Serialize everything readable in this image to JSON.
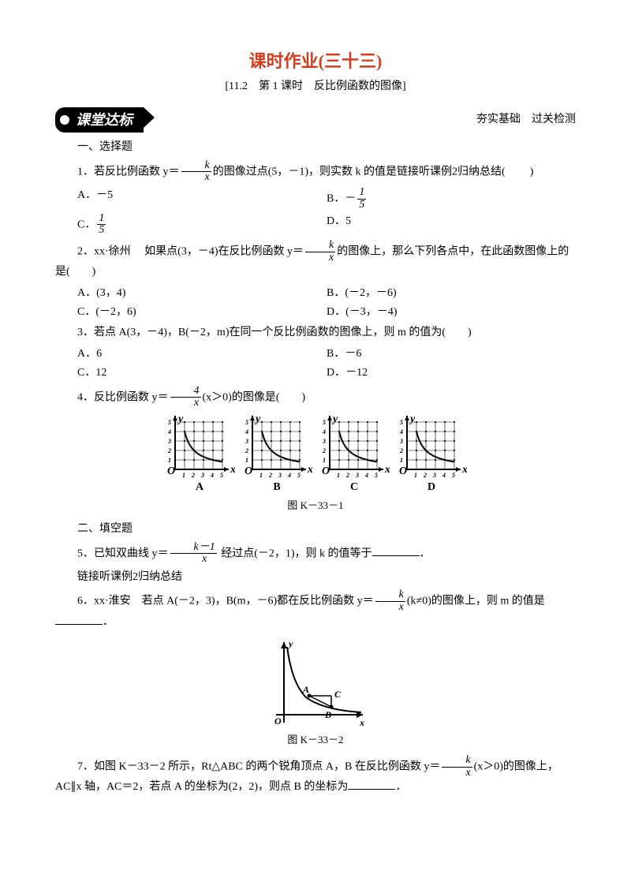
{
  "title": "课时作业(三十三)",
  "subtitle": "[11.2　第 1 课时　反比例函数的图像]",
  "banner": {
    "left": "课堂达标",
    "right": "夯实基础　过关检测"
  },
  "sec1": "一、选择题",
  "q1": {
    "stem_a": "1．若反比例函数 y＝",
    "frac": {
      "n": "k",
      "d": "x"
    },
    "stem_b": "的图像过点(5，－1)，则实数 k 的值是链接听课例2归纳总结",
    "paren": "(　　)",
    "A_pre": "A．－5",
    "B_pre": "B．－",
    "B_frac": {
      "n": "1",
      "d": "5"
    },
    "C_pre": "C．",
    "C_frac": {
      "n": "1",
      "d": "5"
    },
    "D_pre": "D．5"
  },
  "q2": {
    "stem_a": "2．xx·徐州　 如果点(3，－4)在反比例函数 y＝",
    "frac": {
      "n": "k",
      "d": "x"
    },
    "stem_b": "的图像上，那么下列各点中，在此函数图像上的是(　　)",
    "A": "A．(3，4)",
    "B": "B．(－2，－6)",
    "C": "C．(－2，6)",
    "D": "D．(－3，－4)"
  },
  "q3": {
    "stem": "3．若点 A(3，－4)，B(－2，m)在同一个反比例函数的图像上，则 m 的值为(　　)",
    "A": "A．6",
    "B": "B．－6",
    "C": "C．12",
    "D": "D．－12"
  },
  "q4": {
    "stem_a": "4．反比例函数 y＝",
    "frac": {
      "n": "4",
      "d": "x"
    },
    "stem_b": "(x＞0)的图像是(　　)",
    "labels": [
      "A",
      "B",
      "C",
      "D"
    ],
    "caption": "图 K－33－1",
    "chart_style": {
      "grid_n": 5,
      "cell": 12,
      "grid_color": "#222",
      "curve_color": "#000",
      "bg": "#fff",
      "ylabel": "y",
      "xlabel": "x",
      "origin": "O"
    }
  },
  "sec2": "二、填空题",
  "q5": {
    "stem_a": "5．已知双曲线 y＝",
    "frac": {
      "n": "k－1",
      "d": "x"
    },
    "stem_b": " 经过点(－2，1)，则 k 的值等于",
    "tail": "．",
    "note": "链接听课例2归纳总结"
  },
  "q6": {
    "stem_a": "6．xx·淮安　若点 A(－2，3)，B(m，－6)都在反比例函数 y＝",
    "frac": {
      "n": "k",
      "d": "x"
    },
    "stem_b": "(k≠0)的图像上，则 m 的值是",
    "tail": "．",
    "caption": "图 K－33－2"
  },
  "q7": {
    "stem_a": "7．如图 K－33－2 所示，Rt△ABC 的两个锐角顶点 A，B 在反比例函数 y＝",
    "frac": {
      "n": "k",
      "d": "x"
    },
    "stem_b": "(x＞0)的图像上，AC∥x 轴，AC＝2，若点 A 的坐标为(2，2)，则点 B 的坐标为",
    "tail": "．"
  }
}
